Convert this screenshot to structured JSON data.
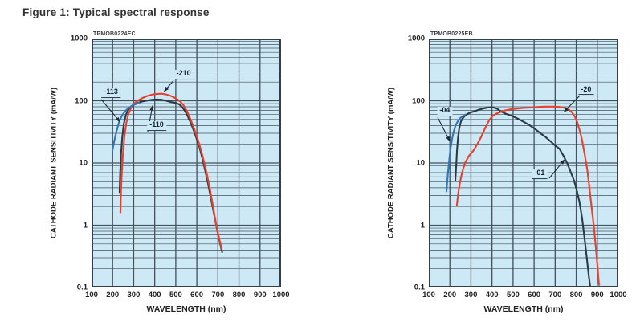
{
  "title": "Figure 1: Typical spectral response",
  "colors": {
    "curve_red": "#e8402d",
    "curve_blue": "#2f76ba",
    "curve_dark": "#2c3a46",
    "plot_bg": "#cde9f6",
    "grid_line": "#44505a",
    "frame": "#333f49",
    "annotation": "#1c2a34",
    "text": "#222222",
    "title_text": "#333333"
  },
  "chart_data": [
    {
      "type": "line",
      "code": "TPMOB0224EC",
      "xlabel": "WAVELENGTH (nm)",
      "ylabel": "CATHODE RADIANT SENSITIVITY (mA/W)",
      "x_ticks": [
        100,
        200,
        300,
        400,
        500,
        600,
        700,
        800,
        900,
        1000
      ],
      "y_ticks": [
        1000,
        100,
        10,
        1,
        0.1
      ],
      "xlim": [
        100,
        1000
      ],
      "ylim": [
        0.1,
        1000
      ],
      "y_scale": "log",
      "grid": true,
      "legend_position": "none",
      "series": [
        {
          "name": "-110",
          "color": "#2c3a46",
          "points": [
            [
              233,
              3.4
            ],
            [
              236,
              7
            ],
            [
              240,
              14
            ],
            [
              246,
              26
            ],
            [
              253,
              42
            ],
            [
              262,
              58
            ],
            [
              272,
              70
            ],
            [
              285,
              80
            ],
            [
              300,
              87
            ],
            [
              318,
              92
            ],
            [
              340,
              97
            ],
            [
              365,
              101
            ],
            [
              390,
              104
            ],
            [
              410,
              105
            ],
            [
              430,
              104
            ],
            [
              450,
              101
            ],
            [
              465,
              98
            ],
            [
              478,
              95
            ],
            [
              490,
              94
            ],
            [
              502,
              92
            ],
            [
              515,
              88
            ],
            [
              528,
              81
            ],
            [
              542,
              70
            ],
            [
              556,
              57
            ],
            [
              570,
              45
            ],
            [
              584,
              34
            ],
            [
              598,
              25
            ],
            [
              612,
              18
            ],
            [
              626,
              12
            ],
            [
              640,
              7.5
            ],
            [
              654,
              4.5
            ],
            [
              668,
              2.6
            ],
            [
              682,
              1.5
            ],
            [
              696,
              0.85
            ],
            [
              708,
              0.55
            ],
            [
              720,
              0.37
            ]
          ]
        },
        {
          "name": "-210",
          "color": "#e8402d",
          "points": [
            [
              237,
              1.6
            ],
            [
              240,
              3.5
            ],
            [
              244,
              7.5
            ],
            [
              249,
              14
            ],
            [
              256,
              26
            ],
            [
              264,
              42
            ],
            [
              274,
              60
            ],
            [
              287,
              76
            ],
            [
              302,
              90
            ],
            [
              320,
              101
            ],
            [
              342,
              111
            ],
            [
              366,
              120
            ],
            [
              390,
              126
            ],
            [
              412,
              129
            ],
            [
              432,
              130
            ],
            [
              452,
              127
            ],
            [
              470,
              122
            ],
            [
              488,
              115
            ],
            [
              505,
              107
            ],
            [
              520,
              98
            ],
            [
              535,
              86
            ],
            [
              550,
              71
            ],
            [
              564,
              56
            ],
            [
              578,
              43
            ],
            [
              592,
              32
            ],
            [
              606,
              23
            ],
            [
              620,
              16
            ],
            [
              634,
              10.5
            ],
            [
              648,
              6.5
            ],
            [
              662,
              3.8
            ],
            [
              676,
              2.1
            ],
            [
              690,
              1.1
            ],
            [
              704,
              0.65
            ],
            [
              718,
              0.42
            ]
          ]
        },
        {
          "name": "-113",
          "color": "#2f76ba",
          "points": [
            [
              199,
              16
            ],
            [
              206,
              21
            ],
            [
              214,
              28
            ],
            [
              223,
              37
            ],
            [
              233,
              48
            ],
            [
              245,
              58
            ],
            [
              258,
              67
            ],
            [
              272,
              75
            ],
            [
              287,
              81
            ],
            [
              302,
              86
            ],
            [
              315,
              90
            ],
            [
              325,
              93
            ]
          ]
        }
      ],
      "annotations": [
        {
          "label": "-113",
          "label_at": [
            192,
            131
          ],
          "leader_from": [
            146,
            105
          ],
          "arrow_to": [
            237,
            45
          ]
        },
        {
          "label": "-210",
          "label_at": [
            537,
            262
          ],
          "leader_from": [
            489,
            210
          ],
          "arrow_to": [
            443,
            139
          ]
        },
        {
          "label": "-110",
          "label_at": [
            409,
            39
          ],
          "leader_from": [
            367,
            32
          ],
          "arrow_to": [
            390,
            85
          ]
        }
      ]
    },
    {
      "type": "line",
      "code": "TPMOB0225EB",
      "xlabel": "WAVELENGTH (nm)",
      "ylabel": "CATHODE RADIANT SENSITIVITY (mA/W)",
      "x_ticks": [
        100,
        200,
        300,
        400,
        500,
        600,
        700,
        800,
        900,
        1000
      ],
      "y_ticks": [
        1000,
        100,
        10,
        1,
        0.1
      ],
      "xlim": [
        100,
        1000
      ],
      "ylim": [
        0.1,
        1000
      ],
      "y_scale": "log",
      "grid": true,
      "legend_position": "none",
      "series": [
        {
          "name": "-01",
          "color": "#2c3a46",
          "points": [
            [
              226,
              5.2
            ],
            [
              230,
              9
            ],
            [
              234,
              16
            ],
            [
              239,
              26
            ],
            [
              245,
              37
            ],
            [
              253,
              47
            ],
            [
              262,
              53
            ],
            [
              273,
              58
            ],
            [
              286,
              62
            ],
            [
              300,
              65
            ],
            [
              318,
              68
            ],
            [
              338,
              72
            ],
            [
              358,
              75
            ],
            [
              378,
              77.5
            ],
            [
              395,
              78.5
            ],
            [
              410,
              77.5
            ],
            [
              425,
              74
            ],
            [
              440,
              68
            ],
            [
              455,
              64
            ],
            [
              470,
              61
            ],
            [
              490,
              58
            ],
            [
              510,
              54
            ],
            [
              530,
              50
            ],
            [
              555,
              45
            ],
            [
              580,
              40
            ],
            [
              605,
              35
            ],
            [
              630,
              30
            ],
            [
              655,
              26
            ],
            [
              680,
              22
            ],
            [
              700,
              19
            ],
            [
              720,
              17
            ],
            [
              740,
              13
            ],
            [
              758,
              9.8
            ],
            [
              775,
              7
            ],
            [
              790,
              5.2
            ],
            [
              803,
              3.6
            ],
            [
              815,
              2.4
            ],
            [
              828,
              1.3
            ],
            [
              840,
              0.6
            ],
            [
              850,
              0.3
            ],
            [
              860,
              0.15
            ],
            [
              867,
              0.1
            ]
          ]
        },
        {
          "name": "-20",
          "color": "#e8402d",
          "points": [
            [
              233,
              2.1
            ],
            [
              240,
              3.3
            ],
            [
              248,
              4.9
            ],
            [
              258,
              7
            ],
            [
              272,
              10
            ],
            [
              290,
              13
            ],
            [
              310,
              15.5
            ],
            [
              330,
              20
            ],
            [
              350,
              27
            ],
            [
              370,
              38
            ],
            [
              387,
              49
            ],
            [
              403,
              57
            ],
            [
              420,
              62
            ],
            [
              440,
              66
            ],
            [
              462,
              70
            ],
            [
              490,
              73
            ],
            [
              520,
              75
            ],
            [
              550,
              76.5
            ],
            [
              585,
              78
            ],
            [
              620,
              79.5
            ],
            [
              655,
              80.5
            ],
            [
              690,
              80.5
            ],
            [
              720,
              79.5
            ],
            [
              745,
              77
            ],
            [
              766,
              72
            ],
            [
              780,
              65
            ],
            [
              793,
              56
            ],
            [
              805,
              45
            ],
            [
              817,
              33
            ],
            [
              828,
              23
            ],
            [
              840,
              14
            ],
            [
              852,
              8
            ],
            [
              862,
              4.2
            ],
            [
              872,
              2.1
            ],
            [
              883,
              1.0
            ],
            [
              893,
              0.45
            ],
            [
              902,
              0.2
            ],
            [
              908,
              0.11
            ]
          ]
        },
        {
          "name": "-04",
          "color": "#2f76ba",
          "points": [
            [
              184,
              3.5
            ],
            [
              190,
              6.5
            ],
            [
              196,
              10.5
            ],
            [
              202,
              16
            ],
            [
              209,
              23
            ],
            [
              217,
              31
            ],
            [
              227,
              40
            ],
            [
              238,
              47
            ],
            [
              250,
              53
            ],
            [
              262,
              57
            ],
            [
              274,
              60
            ]
          ]
        }
      ],
      "annotations": [
        {
          "label": "-04",
          "label_at": [
            176,
            67
          ],
          "leader_from": [
            142,
            54
          ],
          "arrow_to": [
            201,
            22
          ]
        },
        {
          "label": "-20",
          "label_at": [
            847,
            147
          ],
          "leader_from": [
            817,
            121
          ],
          "arrow_to": [
            740,
            65
          ]
        },
        {
          "label": "-01",
          "label_at": [
            626,
            6.6
          ],
          "leader_from": [
            672,
            5.7
          ],
          "arrow_to": [
            746,
            11.5
          ]
        }
      ]
    }
  ]
}
